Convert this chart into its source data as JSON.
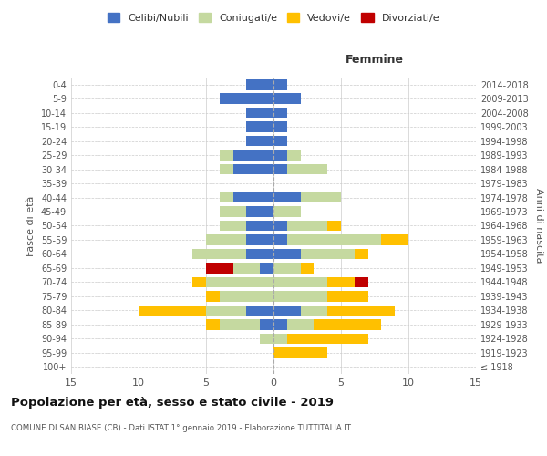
{
  "age_groups": [
    "100+",
    "95-99",
    "90-94",
    "85-89",
    "80-84",
    "75-79",
    "70-74",
    "65-69",
    "60-64",
    "55-59",
    "50-54",
    "45-49",
    "40-44",
    "35-39",
    "30-34",
    "25-29",
    "20-24",
    "15-19",
    "10-14",
    "5-9",
    "0-4"
  ],
  "birth_years": [
    "≤ 1918",
    "1919-1923",
    "1924-1928",
    "1929-1933",
    "1934-1938",
    "1939-1943",
    "1944-1948",
    "1949-1953",
    "1954-1958",
    "1959-1963",
    "1964-1968",
    "1969-1973",
    "1974-1978",
    "1979-1983",
    "1984-1988",
    "1989-1993",
    "1994-1998",
    "1999-2003",
    "2004-2008",
    "2009-2013",
    "2014-2018"
  ],
  "colors": {
    "celibi": "#4472c4",
    "coniugati": "#c5d9a0",
    "vedovi": "#ffc000",
    "divorziati": "#c00000"
  },
  "males": {
    "celibi": [
      0,
      0,
      0,
      1,
      2,
      0,
      0,
      1,
      2,
      2,
      2,
      2,
      3,
      0,
      3,
      3,
      2,
      2,
      2,
      4,
      2
    ],
    "coniugati": [
      0,
      0,
      1,
      3,
      3,
      4,
      5,
      2,
      4,
      3,
      2,
      2,
      1,
      0,
      1,
      1,
      0,
      0,
      0,
      0,
      0
    ],
    "vedovi": [
      0,
      0,
      0,
      1,
      5,
      1,
      1,
      0,
      0,
      0,
      0,
      0,
      0,
      0,
      0,
      0,
      0,
      0,
      0,
      0,
      0
    ],
    "divorziati": [
      0,
      0,
      0,
      0,
      0,
      0,
      0,
      2,
      0,
      0,
      0,
      0,
      0,
      0,
      0,
      0,
      0,
      0,
      0,
      0,
      0
    ]
  },
  "females": {
    "celibi": [
      0,
      0,
      0,
      1,
      2,
      0,
      0,
      0,
      2,
      1,
      1,
      0,
      2,
      0,
      1,
      1,
      1,
      1,
      1,
      2,
      1
    ],
    "coniugati": [
      0,
      0,
      1,
      2,
      2,
      4,
      4,
      2,
      4,
      7,
      3,
      2,
      3,
      0,
      3,
      1,
      0,
      0,
      0,
      0,
      0
    ],
    "vedovi": [
      0,
      4,
      6,
      5,
      5,
      3,
      2,
      1,
      1,
      2,
      1,
      0,
      0,
      0,
      0,
      0,
      0,
      0,
      0,
      0,
      0
    ],
    "divorziati": [
      0,
      0,
      0,
      0,
      0,
      0,
      1,
      0,
      0,
      0,
      0,
      0,
      0,
      0,
      0,
      0,
      0,
      0,
      0,
      0,
      0
    ]
  },
  "title": "Popolazione per età, sesso e stato civile - 2019",
  "subtitle": "COMUNE DI SAN BIASE (CB) - Dati ISTAT 1° gennaio 2019 - Elaborazione TUTTITALIA.IT",
  "xlabel_right": "Femmine",
  "ylabel_left": "Fasce di età",
  "ylabel_right": "Anni di nascita",
  "xlim": 15,
  "legend_labels": [
    "Celibi/Nubili",
    "Coniugati/e",
    "Vedovi/e",
    "Divorziati/e"
  ]
}
